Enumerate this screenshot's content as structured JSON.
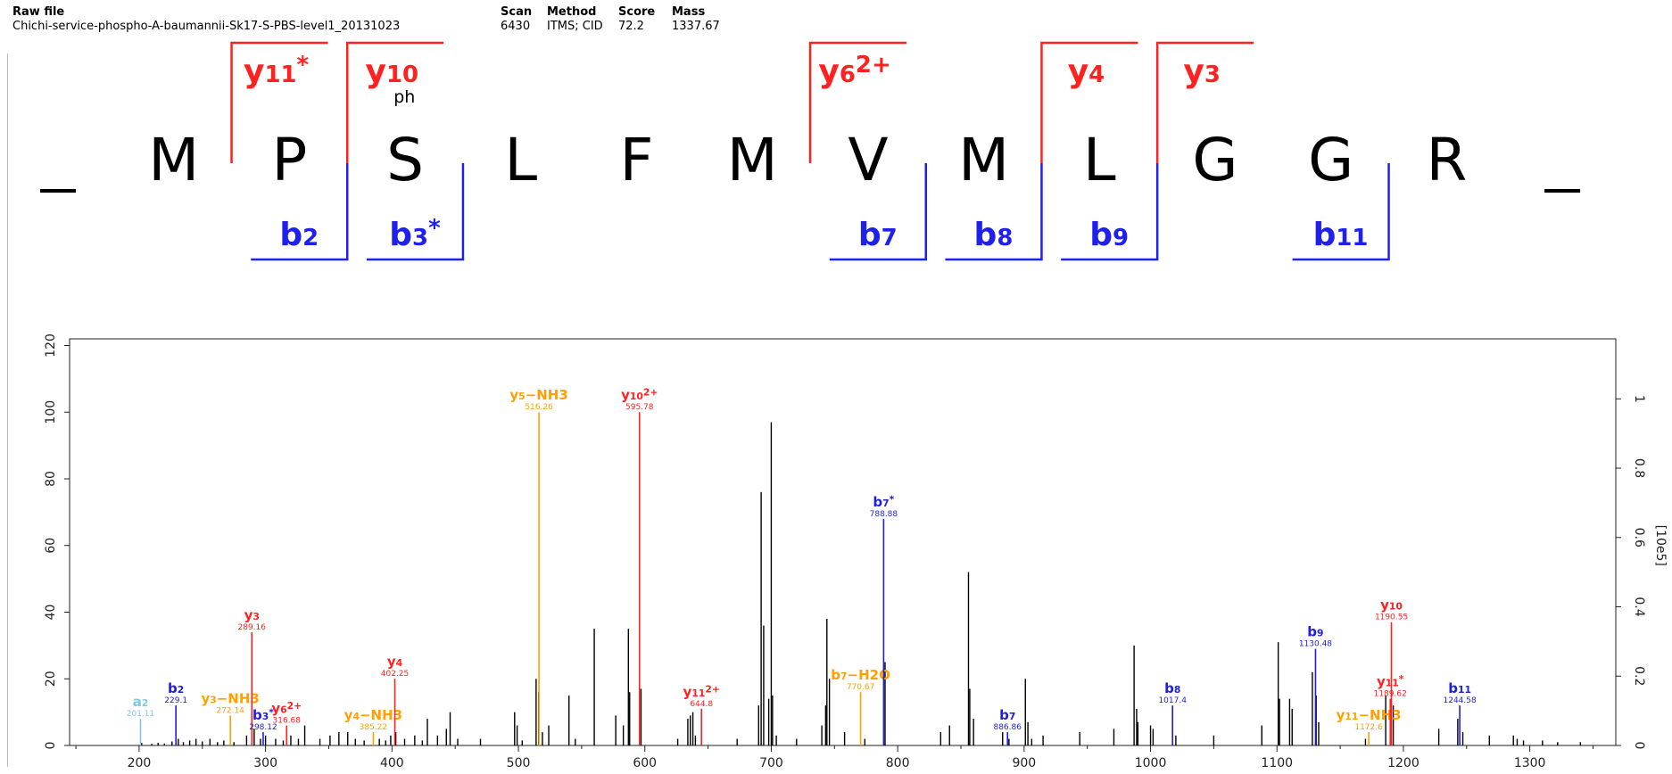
{
  "header": {
    "raw_file_label": "Raw file",
    "raw_file_value": "Chichi-service-phospho-A-baumannii-Sk17-S-PBS-level1_20131023",
    "scan_label": "Scan",
    "scan_value": "6430",
    "method_label": "Method",
    "method_value": "ITMS; CID",
    "score_label": "Score",
    "score_value": "72.2",
    "mass_label": "Mass",
    "mass_value": "1337.67"
  },
  "sequence": {
    "residues": [
      "_",
      "M",
      "P",
      "S",
      "L",
      "F",
      "M",
      "V",
      "M",
      "L",
      "G",
      "G",
      "R",
      "_"
    ],
    "mod_label": "ph",
    "y_ions": [
      {
        "base": "y",
        "sub": "11",
        "sup": "*",
        "before_residue": 2
      },
      {
        "base": "y",
        "sub": "10",
        "sup": "",
        "before_residue": 3
      },
      {
        "base": "y",
        "sub": "6",
        "sup": "2+",
        "before_residue": 7
      },
      {
        "base": "y",
        "sub": "4",
        "sup": "",
        "before_residue": 9
      },
      {
        "base": "y",
        "sub": "3",
        "sup": "",
        "before_residue": 10
      }
    ],
    "b_ions": [
      {
        "base": "b",
        "sub": "2",
        "sup": "",
        "after_residue": 2
      },
      {
        "base": "b",
        "sub": "3",
        "sup": "*",
        "after_residue": 3
      },
      {
        "base": "b",
        "sub": "7",
        "sup": "",
        "after_residue": 7
      },
      {
        "base": "b",
        "sub": "8",
        "sup": "",
        "after_residue": 8
      },
      {
        "base": "b",
        "sub": "9",
        "sup": "",
        "after_residue": 9
      },
      {
        "base": "b",
        "sub": "11",
        "sup": "",
        "after_residue": 11
      }
    ],
    "colors": {
      "y": "#ff2020",
      "b": "#2020ee",
      "text": "#000000"
    }
  },
  "chart_data": {
    "type": "bar",
    "xlim": [
      145,
      1368
    ],
    "ylim": [
      0,
      122
    ],
    "x_ticks": [
      200,
      300,
      400,
      500,
      600,
      700,
      800,
      900,
      1000,
      1100,
      1200,
      1300
    ],
    "y_ticks": [
      0,
      20,
      40,
      60,
      80,
      100,
      120
    ],
    "y2_label": "[10e5]",
    "y2_ticks": [
      {
        "label": "0",
        "at": 0
      },
      {
        "label": "0.2",
        "at": 20.8
      },
      {
        "label": "0.4",
        "at": 41.6
      },
      {
        "label": "0.6",
        "at": 62.4
      },
      {
        "label": "0.8",
        "at": 83.2
      },
      {
        "label": "1",
        "at": 104
      }
    ],
    "colors": {
      "unassigned": "#000000",
      "y": "#ff2020",
      "b": "#1e1ee0",
      "neutral_loss": "#ffa000",
      "a": "#7ec8e3"
    },
    "annotated_peaks": [
      {
        "x": 201.11,
        "y": 8,
        "cls": "a",
        "base": "a",
        "sub": "2",
        "sup": "",
        "suffix": "",
        "mz": "201.11"
      },
      {
        "x": 229.1,
        "y": 12,
        "cls": "b",
        "base": "b",
        "sub": "2",
        "sup": "",
        "suffix": "",
        "mz": "229.1"
      },
      {
        "x": 272.14,
        "y": 9,
        "cls": "neutral_loss",
        "base": "y",
        "sub": "3",
        "sup": "",
        "suffix": "−NH3",
        "mz": "272.14"
      },
      {
        "x": 289.16,
        "y": 34,
        "cls": "y",
        "base": "y",
        "sub": "3",
        "sup": "",
        "suffix": "",
        "mz": "289.16"
      },
      {
        "x": 298.12,
        "y": 4,
        "cls": "b",
        "base": "b",
        "sub": "3",
        "sup": "*",
        "suffix": "",
        "mz": "298.12"
      },
      {
        "x": 316.68,
        "y": 6,
        "cls": "y",
        "base": "y",
        "sub": "6",
        "sup": "2+",
        "suffix": "",
        "mz": "316.68"
      },
      {
        "x": 385.22,
        "y": 4,
        "cls": "neutral_loss",
        "base": "y",
        "sub": "4",
        "sup": "",
        "suffix": "−NH3",
        "mz": "385.22"
      },
      {
        "x": 402.25,
        "y": 20,
        "cls": "y",
        "base": "y",
        "sub": "4",
        "sup": "",
        "suffix": "",
        "mz": "402.25"
      },
      {
        "x": 516.26,
        "y": 100,
        "cls": "neutral_loss",
        "base": "y",
        "sub": "5",
        "sup": "",
        "suffix": "−NH3",
        "mz": "516.26"
      },
      {
        "x": 595.78,
        "y": 100,
        "cls": "y",
        "base": "y",
        "sub": "10",
        "sup": "2+",
        "suffix": "",
        "mz": "595.78"
      },
      {
        "x": 644.8,
        "y": 11,
        "cls": "y",
        "base": "y",
        "sub": "11",
        "sup": "2+",
        "suffix": "",
        "mz": "644.8"
      },
      {
        "x": 770.67,
        "y": 16,
        "cls": "neutral_loss",
        "base": "b",
        "sub": "7",
        "sup": "",
        "suffix": "−H2O",
        "mz": "770.67"
      },
      {
        "x": 788.88,
        "y": 68,
        "cls": "b",
        "base": "b",
        "sub": "7",
        "sup": "*",
        "suffix": "",
        "mz": "788.88"
      },
      {
        "x": 886.86,
        "y": 4,
        "cls": "b",
        "base": "b",
        "sub": "7",
        "sup": "",
        "suffix": "",
        "mz": "886.86"
      },
      {
        "x": 1017.4,
        "y": 12,
        "cls": "b",
        "base": "b",
        "sub": "8",
        "sup": "",
        "suffix": "",
        "mz": "1017.4"
      },
      {
        "x": 1130.48,
        "y": 29,
        "cls": "b",
        "base": "b",
        "sub": "9",
        "sup": "",
        "suffix": "",
        "mz": "1130.48"
      },
      {
        "x": 1172.6,
        "y": 4,
        "cls": "neutral_loss",
        "base": "y",
        "sub": "11",
        "sup": "",
        "suffix": "−NH3",
        "mz": "1172.6"
      },
      {
        "x": 1189.62,
        "y": 14,
        "cls": "y",
        "base": "y",
        "sub": "11",
        "sup": "*",
        "suffix": "",
        "mz": "1189.62"
      },
      {
        "x": 1190.55,
        "y": 37,
        "cls": "y",
        "base": "y",
        "sub": "10",
        "sup": "",
        "suffix": "",
        "mz": "1190.55"
      },
      {
        "x": 1244.58,
        "y": 12,
        "cls": "b",
        "base": "b",
        "sub": "11",
        "sup": "",
        "suffix": "",
        "mz": "1244.58"
      }
    ],
    "unassigned_peaks": [
      [
        202,
        0.8
      ],
      [
        210,
        0.5
      ],
      [
        215,
        0.8
      ],
      [
        220,
        0.6
      ],
      [
        226,
        1.2
      ],
      [
        231,
        2
      ],
      [
        235,
        1
      ],
      [
        240,
        1.5
      ],
      [
        245,
        2
      ],
      [
        250,
        1.2
      ],
      [
        256,
        2
      ],
      [
        262,
        1
      ],
      [
        267,
        1.5
      ],
      [
        275,
        1
      ],
      [
        285,
        3
      ],
      [
        291,
        5
      ],
      [
        296,
        2
      ],
      [
        300,
        3
      ],
      [
        308,
        2
      ],
      [
        314,
        1.5
      ],
      [
        320,
        3
      ],
      [
        326,
        2
      ],
      [
        331,
        6
      ],
      [
        343,
        2
      ],
      [
        351,
        3
      ],
      [
        358,
        4
      ],
      [
        365,
        4
      ],
      [
        371,
        2
      ],
      [
        378,
        1.5
      ],
      [
        390,
        2
      ],
      [
        395,
        1.5
      ],
      [
        399,
        3
      ],
      [
        403,
        4
      ],
      [
        410,
        2
      ],
      [
        418,
        3
      ],
      [
        424,
        1.5
      ],
      [
        428,
        8
      ],
      [
        436,
        3
      ],
      [
        443,
        5
      ],
      [
        446,
        10
      ],
      [
        452,
        2
      ],
      [
        470,
        2
      ],
      [
        497,
        10
      ],
      [
        499,
        6
      ],
      [
        503,
        1.5
      ],
      [
        514,
        20
      ],
      [
        516,
        16
      ],
      [
        519,
        4
      ],
      [
        524,
        6
      ],
      [
        540,
        15
      ],
      [
        545,
        2
      ],
      [
        560,
        35
      ],
      [
        577,
        9
      ],
      [
        583,
        6
      ],
      [
        587,
        35
      ],
      [
        588,
        16
      ],
      [
        597,
        17
      ],
      [
        626,
        2
      ],
      [
        634,
        8
      ],
      [
        636,
        9
      ],
      [
        638,
        10
      ],
      [
        640,
        3
      ],
      [
        673,
        2
      ],
      [
        690,
        12
      ],
      [
        692,
        76
      ],
      [
        694,
        36
      ],
      [
        698,
        14
      ],
      [
        700,
        97
      ],
      [
        701,
        15
      ],
      [
        704,
        3
      ],
      [
        720,
        2
      ],
      [
        740,
        6
      ],
      [
        743,
        12
      ],
      [
        744,
        38
      ],
      [
        746,
        20
      ],
      [
        758,
        4
      ],
      [
        774,
        2
      ],
      [
        790,
        25
      ],
      [
        834,
        4
      ],
      [
        841,
        6
      ],
      [
        856,
        52
      ],
      [
        857,
        17
      ],
      [
        860,
        8
      ],
      [
        883,
        4
      ],
      [
        888,
        2
      ],
      [
        901,
        20
      ],
      [
        903,
        7
      ],
      [
        906,
        2
      ],
      [
        915,
        3
      ],
      [
        944,
        4
      ],
      [
        971,
        5
      ],
      [
        987,
        30
      ],
      [
        989,
        11
      ],
      [
        990,
        7
      ],
      [
        1000,
        6
      ],
      [
        1002,
        5
      ],
      [
        1020,
        3
      ],
      [
        1050,
        3
      ],
      [
        1088,
        6
      ],
      [
        1101,
        31
      ],
      [
        1102,
        14
      ],
      [
        1110,
        14
      ],
      [
        1112,
        11
      ],
      [
        1128,
        22
      ],
      [
        1131,
        15
      ],
      [
        1133,
        7
      ],
      [
        1170,
        2
      ],
      [
        1186,
        15
      ],
      [
        1192,
        12
      ],
      [
        1228,
        5
      ],
      [
        1243,
        8
      ],
      [
        1247,
        4
      ],
      [
        1268,
        3
      ],
      [
        1287,
        3
      ],
      [
        1290,
        2
      ],
      [
        1295,
        1.5
      ],
      [
        1310,
        1.5
      ],
      [
        1322,
        1
      ],
      [
        1340,
        1
      ]
    ]
  }
}
